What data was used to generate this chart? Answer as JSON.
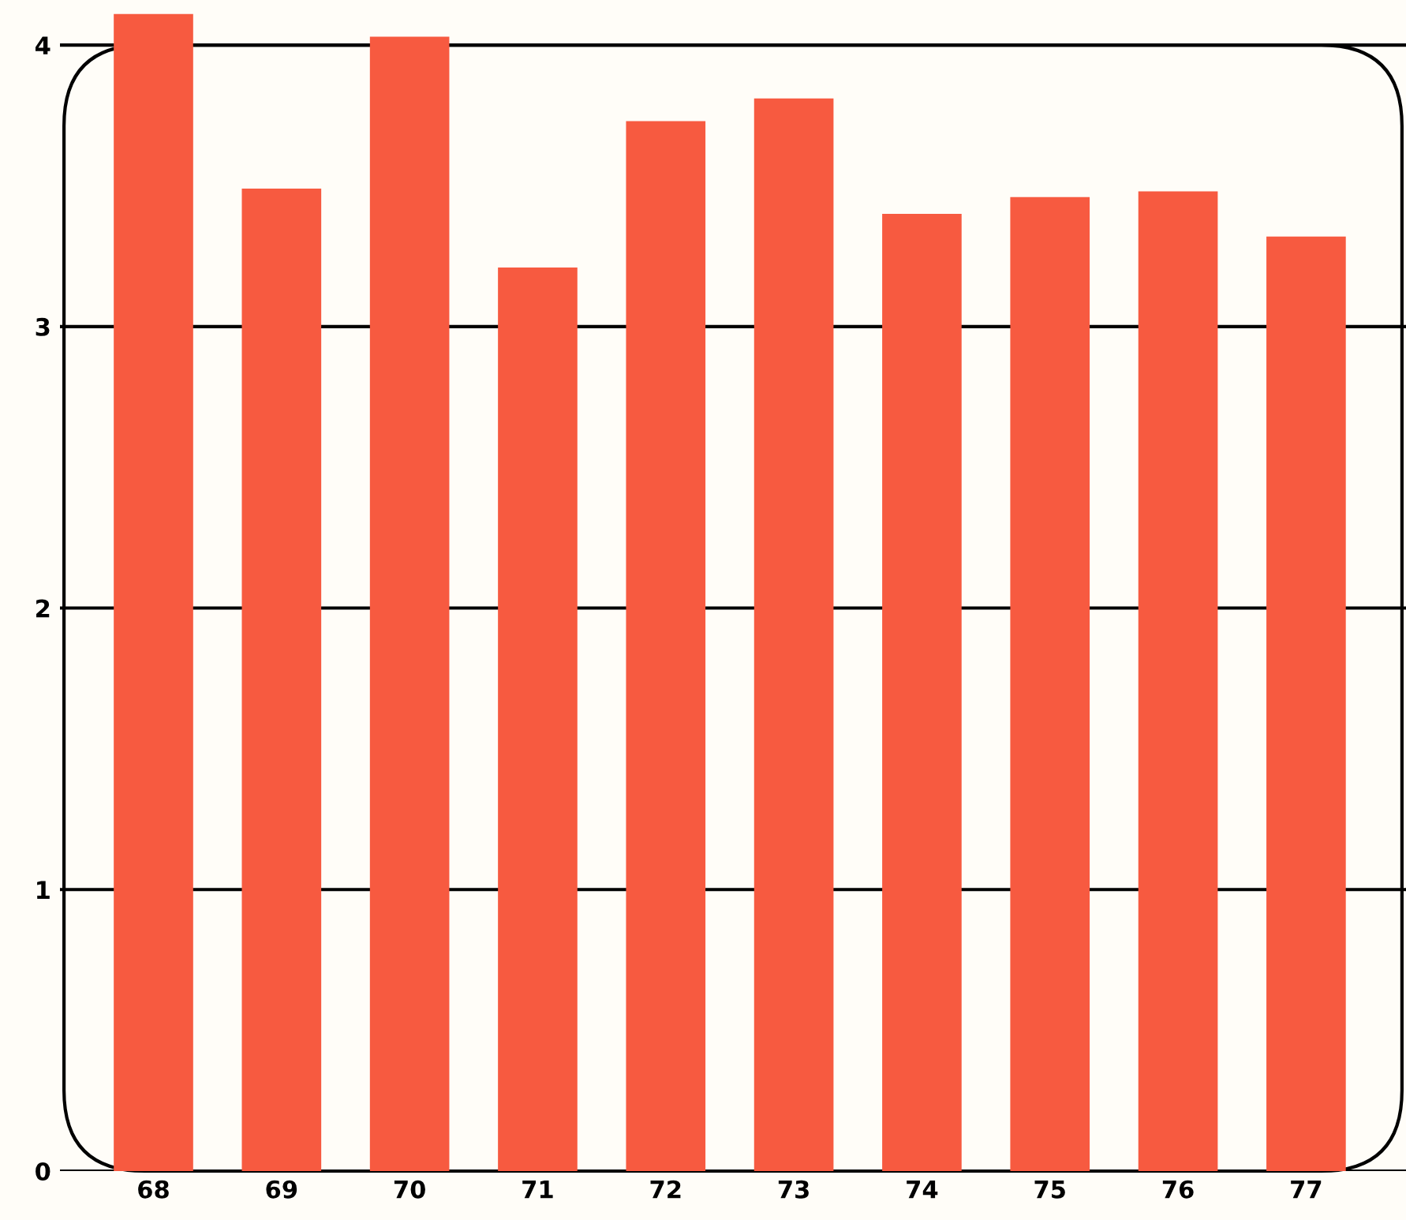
{
  "chart_data": {
    "type": "bar",
    "categories": [
      "68",
      "69",
      "70",
      "71",
      "72",
      "73",
      "74",
      "75",
      "76",
      "77"
    ],
    "values": [
      4.11,
      3.49,
      4.03,
      3.21,
      3.73,
      3.81,
      3.4,
      3.46,
      3.48,
      3.32
    ],
    "color": "#f75a40",
    "ylim": [
      0,
      4.16
    ],
    "yticks": [
      0,
      1,
      2,
      3,
      4
    ],
    "grid": "y"
  }
}
